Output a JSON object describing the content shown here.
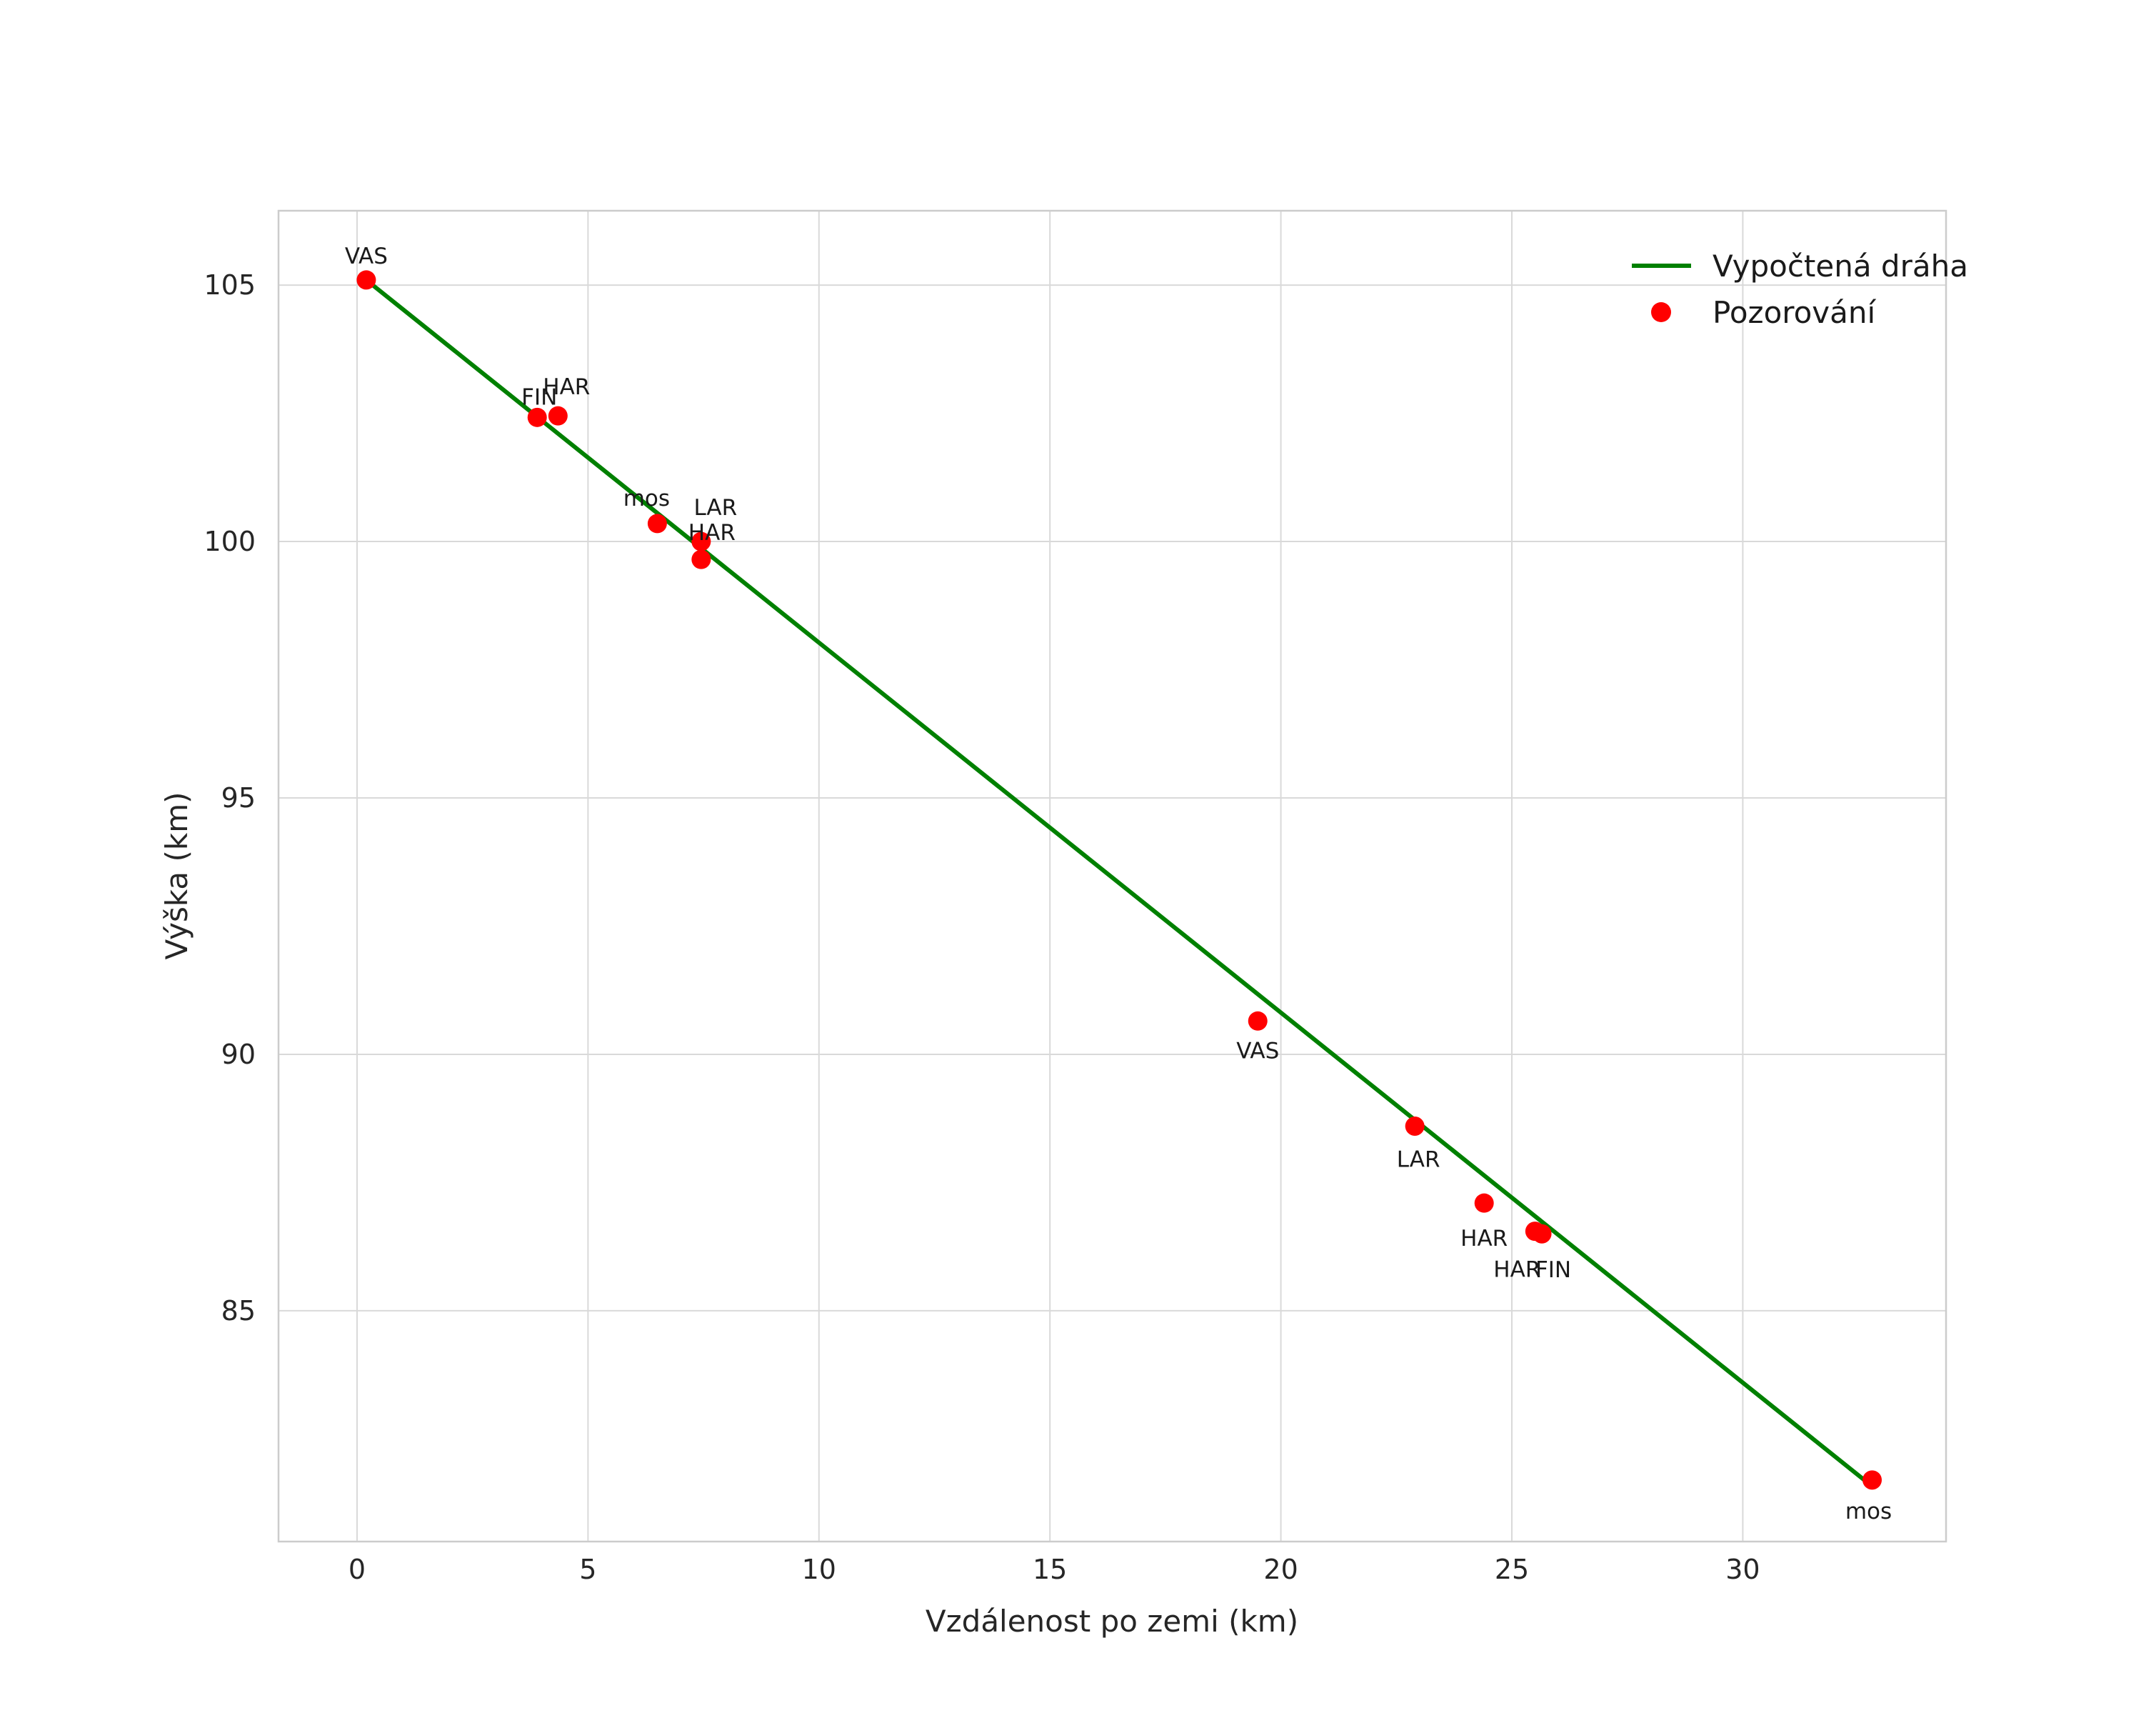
{
  "chart_data": {
    "type": "scatter",
    "title": "",
    "xlabel": "Vzdálenost po zemi (km)",
    "ylabel": "Výška (km)",
    "xlim": [
      -1.7,
      34.4
    ],
    "ylim": [
      80.5,
      106.45
    ],
    "x_ticks": [
      0,
      5,
      10,
      15,
      20,
      25,
      30
    ],
    "y_ticks": [
      85,
      90,
      95,
      100,
      105
    ],
    "grid": true,
    "colors": {
      "trajectory_line": "#008000",
      "observation_marker": "#ff0000",
      "grid": "#d9d9d9",
      "background": "#ffffff"
    },
    "legend": {
      "position": "top-right",
      "entries": [
        {
          "label": "Vypočtená dráha",
          "type": "line",
          "color": "#008000"
        },
        {
          "label": "Pozorování",
          "type": "marker",
          "color": "#ff0000"
        }
      ]
    },
    "series": [
      {
        "name": "Vypočtená dráha",
        "type": "line",
        "color": "#008000",
        "x": [
          0.2,
          32.7
        ],
        "y": [
          105.1,
          81.65
        ]
      },
      {
        "name": "Pozorování",
        "type": "scatter",
        "color": "#ff0000",
        "marker_radius": 13.5,
        "points": [
          {
            "station": "VAS",
            "x": 0.2,
            "y": 105.1,
            "label_dx": 0,
            "label_dy": -23
          },
          {
            "station": "FIN",
            "x": 3.9,
            "y": 102.42,
            "label_dx": 3,
            "label_dy": -18
          },
          {
            "station": "HAR",
            "x": 4.35,
            "y": 102.45,
            "label_dx": 12,
            "label_dy": -30
          },
          {
            "station": "mos",
            "x": 6.5,
            "y": 100.35,
            "label_dx": -15,
            "label_dy": -25
          },
          {
            "station": "LAR",
            "x": 7.45,
            "y": 100.0,
            "label_dx": 20,
            "label_dy": -37
          },
          {
            "station": "HAR",
            "x": 7.45,
            "y": 99.65,
            "label_dx": 15,
            "label_dy": -27
          },
          {
            "station": "VAS",
            "x": 19.5,
            "y": 90.65,
            "label_dx": 0,
            "label_dy": 52
          },
          {
            "station": "LAR",
            "x": 22.9,
            "y": 88.6,
            "label_dx": 5,
            "label_dy": 57
          },
          {
            "station": "HAR",
            "x": 24.4,
            "y": 87.1,
            "label_dx": 0,
            "label_dy": 60
          },
          {
            "station": "HAR",
            "x": 25.5,
            "y": 86.55,
            "label_dx": -25,
            "label_dy": 64
          },
          {
            "station": "FIN",
            "x": 25.65,
            "y": 86.5,
            "label_dx": 16,
            "label_dy": 61
          },
          {
            "station": "mos",
            "x": 32.8,
            "y": 81.7,
            "label_dx": -5,
            "label_dy": 54
          }
        ]
      }
    ]
  }
}
